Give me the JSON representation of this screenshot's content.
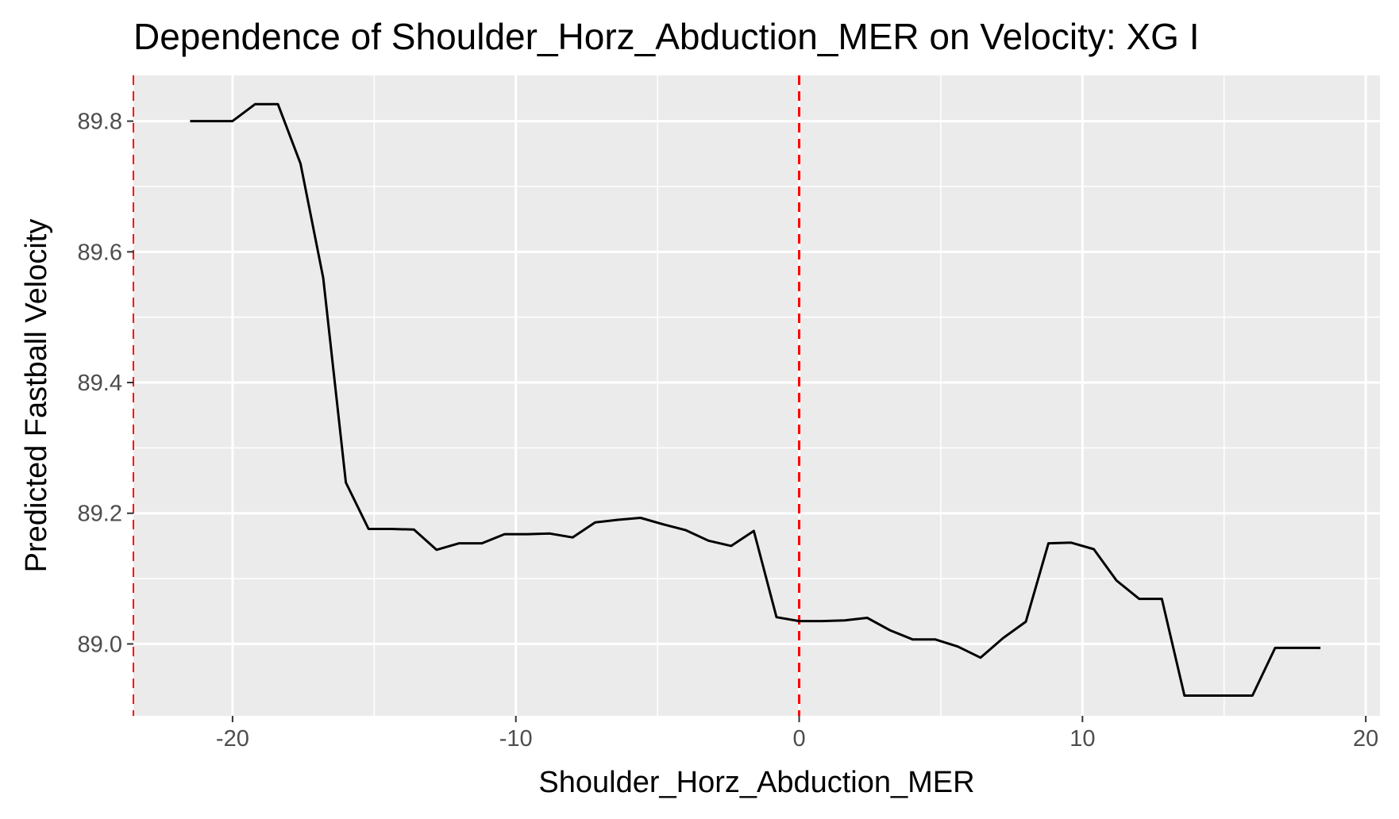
{
  "chart_data": {
    "type": "line",
    "title": "Dependence of Shoulder_Horz_Abduction_MER on Velocity: XG I",
    "xlabel": "Shoulder_Horz_Abduction_MER",
    "ylabel": "Predicted Fastball Velocity",
    "xlim": [
      -23.5,
      20.5
    ],
    "ylim": [
      88.89,
      89.87
    ],
    "x_ticks": [
      -20,
      -10,
      0,
      10,
      20
    ],
    "x_tick_labels": [
      "-20",
      "-10",
      "0",
      "10",
      "20"
    ],
    "y_ticks": [
      89.0,
      89.2,
      89.4,
      89.6,
      89.8
    ],
    "y_tick_labels": [
      "89.0",
      "89.2",
      "89.4",
      "89.6",
      "89.8"
    ],
    "grid": true,
    "legend": "none",
    "series": [
      {
        "color": "#000000",
        "x": [
          -21.5,
          -20.0,
          -19.2,
          -18.4,
          -17.6,
          -16.8,
          -16.0,
          -15.2,
          -14.4,
          -13.6,
          -12.8,
          -12.0,
          -11.2,
          -10.4,
          -9.6,
          -8.8,
          -8.0,
          -7.2,
          -6.4,
          -5.6,
          -4.8,
          -4.0,
          -3.2,
          -2.4,
          -1.6,
          -0.8,
          0.0,
          0.8,
          1.6,
          2.4,
          3.2,
          4.0,
          4.8,
          5.6,
          6.4,
          7.2,
          8.0,
          8.8,
          9.6,
          10.4,
          11.2,
          12.0,
          12.8,
          13.6,
          14.4,
          15.2,
          16.0,
          16.8,
          17.6,
          18.4
        ],
        "y": [
          89.8,
          89.8,
          89.826,
          89.826,
          89.735,
          89.56,
          89.247,
          89.176,
          89.176,
          89.175,
          89.144,
          89.154,
          89.154,
          89.168,
          89.168,
          89.169,
          89.163,
          89.186,
          89.19,
          89.193,
          89.183,
          89.174,
          89.158,
          89.15,
          89.173,
          89.041,
          89.035,
          89.035,
          89.036,
          89.04,
          89.021,
          89.007,
          89.007,
          88.996,
          88.979,
          89.009,
          89.034,
          89.154,
          89.155,
          89.145,
          89.097,
          89.069,
          89.069,
          88.921,
          88.921,
          88.921,
          88.921,
          88.994,
          88.994,
          88.994
        ]
      }
    ],
    "reference_lines": [
      {
        "axis": "x",
        "value": -23.5,
        "color": "#ff0000",
        "style": "dashed"
      },
      {
        "axis": "x",
        "value": 0,
        "color": "#ff0000",
        "style": "dashed"
      }
    ],
    "colors": {
      "panel_background": "#ebebeb",
      "grid": "#ffffff",
      "tick_text": "#4d4d4d",
      "tick_mark": "#333333"
    }
  }
}
